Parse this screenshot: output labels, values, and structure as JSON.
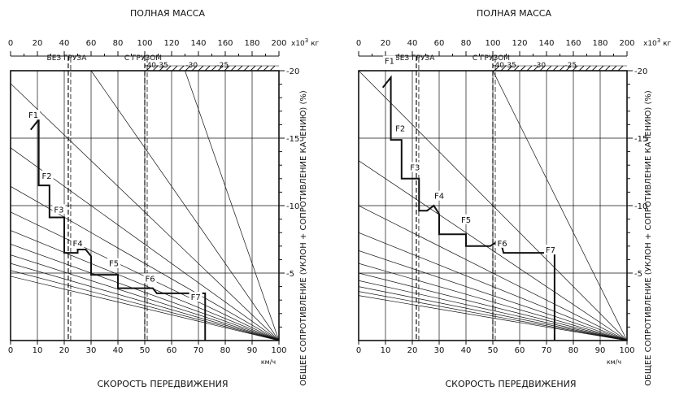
{
  "chart_data": [
    {
      "type": "line",
      "title": "ПОЛНАЯ МАССА",
      "top_axis": {
        "ticks": [
          "0",
          "20",
          "40",
          "60",
          "80",
          "100",
          "120",
          "140",
          "160",
          "180",
          "200"
        ],
        "range": [
          0,
          200
        ],
        "unit_prefix": "x10",
        "unit_exp": "3",
        "unit_suffix": " кг"
      },
      "load_markers": [
        {
          "label": "БЕЗ ГРУЗА",
          "mass": 43
        },
        {
          "label": "С ГРУЗОМ",
          "mass": 100
        }
      ],
      "grade_labels": [
        "-40",
        "-35",
        "-30",
        "-25"
      ],
      "right_axis": {
        "range": [
          0,
          20
        ],
        "ticks": [
          "-5",
          "-10",
          "-15",
          "-20"
        ],
        "label": "ОБЩЕЕ СОПРОТИВЛЕНИЕ (УКЛОН + СОПРОТИВЛЕНИЕ КАЧЕНИЮ) (%)"
      },
      "x_axis": {
        "ticks": [
          "0",
          "10",
          "20",
          "30",
          "40",
          "50",
          "60",
          "70",
          "80",
          "90",
          "100"
        ],
        "range": [
          0,
          100
        ],
        "unit": "км/ч",
        "label": "СКОРОСТЬ ПЕРЕДВИЖЕНИЯ"
      },
      "gears": [
        "F1",
        "F2",
        "F3",
        "F4",
        "F5",
        "F6",
        "F7"
      ],
      "gear_label_pos": [
        [
          8.5,
          66
        ],
        [
          13.5,
          48
        ],
        [
          18,
          38
        ],
        [
          25,
          28
        ],
        [
          38.5,
          22
        ],
        [
          52,
          17.5
        ],
        [
          69,
          12
        ]
      ],
      "curve": [
        [
          7.5,
          62.5
        ],
        [
          10.5,
          65.5
        ],
        [
          10.5,
          46
        ],
        [
          14.5,
          46
        ],
        [
          14.5,
          36.5
        ],
        [
          20,
          36.5
        ],
        [
          20,
          26
        ],
        [
          25,
          26
        ],
        [
          25,
          27
        ],
        [
          28,
          27
        ],
        [
          30,
          25
        ],
        [
          30,
          19.5
        ],
        [
          40,
          19.5
        ],
        [
          40,
          15.5
        ],
        [
          53,
          15.5
        ],
        [
          54.5,
          14
        ],
        [
          72.5,
          14
        ],
        [
          72.5,
          0
        ]
      ],
      "grade_lines": [
        3.5,
        7,
        10.5,
        14,
        17.5,
        21,
        24.5,
        28,
        31.5,
        35,
        38.5,
        42
      ]
    },
    {
      "type": "line",
      "title": "ПОЛНАЯ МАССА",
      "top_axis": {
        "ticks": [
          "0",
          "20",
          "40",
          "60",
          "80",
          "100",
          "120",
          "140",
          "160",
          "180",
          "200"
        ],
        "range": [
          0,
          200
        ],
        "unit_prefix": "x10",
        "unit_exp": "3",
        "unit_suffix": " кг"
      },
      "load_markers": [
        {
          "label": "БЕЗ ГРУЗА",
          "mass": 43
        },
        {
          "label": "С ГРУЗОМ",
          "mass": 100
        }
      ],
      "grade_labels": [
        "-40",
        "-35",
        "-30",
        "-25"
      ],
      "right_axis": {
        "range": [
          0,
          20
        ],
        "ticks": [
          "-5",
          "-10",
          "-15",
          "-20"
        ],
        "label": "ОБЩЕЕ СОПРОТИВЛЕНИЕ (УКЛОН + СОПРОТИВЛЕНИЕ КАЧЕНИЮ) (%)"
      },
      "x_axis": {
        "ticks": [
          "0",
          "10",
          "20",
          "30",
          "40",
          "50",
          "60",
          "70",
          "80",
          "90",
          "100"
        ],
        "range": [
          0,
          100
        ],
        "unit": "км/ч",
        "label": "СКОРОСТЬ ПЕРЕДВИЖЕНИЯ"
      },
      "gears": [
        "F1",
        "F2",
        "F3",
        "F4",
        "F5",
        "F6",
        "F7"
      ],
      "gear_label_pos": [
        [
          11.5,
          82
        ],
        [
          15.5,
          62
        ],
        [
          21,
          50.5
        ],
        [
          30,
          42
        ],
        [
          40,
          35
        ],
        [
          53.5,
          28
        ],
        [
          71.5,
          26
        ]
      ],
      "curve": [
        [
          9,
          75
        ],
        [
          12,
          78
        ],
        [
          12,
          59.5
        ],
        [
          16,
          59.5
        ],
        [
          16,
          48
        ],
        [
          22.5,
          48
        ],
        [
          22.5,
          38.5
        ],
        [
          25.5,
          38.5
        ],
        [
          28,
          40
        ],
        [
          30,
          37.5
        ],
        [
          30,
          31.5
        ],
        [
          40,
          31.5
        ],
        [
          40,
          28
        ],
        [
          49,
          28
        ],
        [
          51,
          29
        ],
        [
          53,
          29
        ],
        [
          54,
          26
        ],
        [
          73,
          26
        ],
        [
          73,
          0
        ]
      ],
      "grade_lines": [
        5,
        10,
        15,
        20,
        25,
        30,
        35,
        40,
        45,
        50,
        55,
        60
      ]
    }
  ]
}
